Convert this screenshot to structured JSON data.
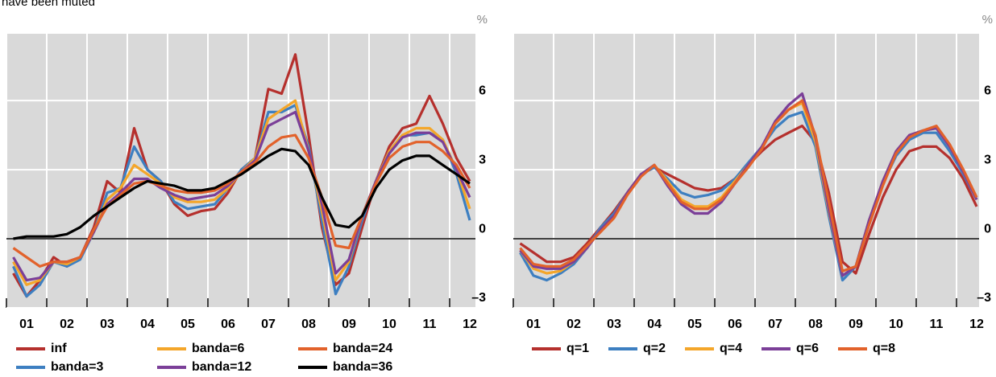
{
  "caption": "have been muted",
  "chart_data": [
    {
      "type": "line",
      "unit_label": "%",
      "x": [
        1.17,
        1.5,
        1.83,
        2.17,
        2.5,
        2.83,
        3.17,
        3.5,
        3.83,
        4.17,
        4.5,
        4.83,
        5.17,
        5.5,
        5.83,
        6.17,
        6.5,
        6.83,
        7.17,
        7.5,
        7.83,
        8.17,
        8.5,
        8.83,
        9.17,
        9.5,
        9.83,
        10.17,
        10.5,
        10.83,
        11.17,
        11.5,
        11.83,
        12.17,
        12.5
      ],
      "xlim": [
        1,
        12.64
      ],
      "xticks": [
        {
          "value": 1,
          "label": "01"
        },
        {
          "value": 2,
          "label": "02"
        },
        {
          "value": 3,
          "label": "03"
        },
        {
          "value": 4,
          "label": "04"
        },
        {
          "value": 5,
          "label": "05"
        },
        {
          "value": 6,
          "label": "06"
        },
        {
          "value": 7,
          "label": "07"
        },
        {
          "value": 8,
          "label": "08"
        },
        {
          "value": 9,
          "label": "09"
        },
        {
          "value": 10,
          "label": "10"
        },
        {
          "value": 11,
          "label": "11"
        },
        {
          "value": 12,
          "label": "12"
        }
      ],
      "ylim": [
        -3,
        8.9
      ],
      "yticks": [
        {
          "value": -3,
          "label": "–3"
        },
        0,
        3,
        6
      ],
      "grid": true,
      "legend": "bottom",
      "series": [
        {
          "name": "inf",
          "color": "#b5302d",
          "values": [
            -1.5,
            -2.5,
            -1.8,
            -0.8,
            -1.2,
            -0.8,
            0.5,
            2.5,
            2.0,
            4.8,
            3.0,
            2.5,
            1.5,
            1.0,
            1.2,
            1.3,
            2.0,
            3.0,
            3.5,
            6.5,
            6.3,
            8.0,
            4.5,
            0.5,
            -2.0,
            -1.5,
            0.5,
            2.5,
            4.0,
            4.8,
            5.0,
            6.2,
            5.0,
            3.5,
            2.5
          ]
        },
        {
          "name": "banda=3",
          "color": "#3d7fc1",
          "values": [
            -1.2,
            -2.5,
            -2.0,
            -1.0,
            -1.2,
            -0.9,
            0.3,
            2.0,
            2.2,
            4.0,
            3.0,
            2.5,
            1.6,
            1.3,
            1.4,
            1.5,
            2.2,
            3.0,
            3.5,
            5.5,
            5.5,
            5.8,
            4.0,
            0.8,
            -2.4,
            -1.2,
            0.8,
            2.5,
            3.8,
            4.5,
            4.5,
            4.6,
            4.3,
            2.8,
            0.8
          ]
        },
        {
          "name": "banda=6",
          "color": "#f4a62a",
          "values": [
            -1.0,
            -2.0,
            -1.8,
            -1.0,
            -1.1,
            -0.8,
            0.3,
            1.7,
            2.2,
            3.2,
            2.8,
            2.4,
            1.8,
            1.6,
            1.6,
            1.7,
            2.2,
            2.9,
            3.5,
            5.2,
            5.6,
            6.0,
            3.8,
            1.2,
            -1.8,
            -1.0,
            1.0,
            2.5,
            3.8,
            4.5,
            4.8,
            4.8,
            4.3,
            3.0,
            1.3
          ]
        },
        {
          "name": "banda=12",
          "color": "#7b3f98",
          "values": [
            -0.8,
            -1.8,
            -1.7,
            -1.0,
            -1.0,
            -0.8,
            0.3,
            1.5,
            2.0,
            2.6,
            2.6,
            2.2,
            1.9,
            1.7,
            1.8,
            1.9,
            2.3,
            2.9,
            3.4,
            4.9,
            5.2,
            5.5,
            3.8,
            1.5,
            -1.5,
            -0.9,
            1.0,
            2.5,
            3.7,
            4.4,
            4.6,
            4.6,
            4.2,
            3.0,
            1.8
          ]
        },
        {
          "name": "banda=24",
          "color": "#e2622b",
          "values": [
            -0.4,
            -0.8,
            -1.2,
            -1.0,
            -1.0,
            -0.8,
            0.4,
            1.4,
            1.9,
            2.4,
            2.5,
            2.3,
            2.1,
            2.0,
            2.0,
            2.1,
            2.4,
            2.9,
            3.3,
            4.0,
            4.4,
            4.5,
            3.5,
            1.8,
            -0.3,
            -0.4,
            1.0,
            2.4,
            3.5,
            4.0,
            4.2,
            4.2,
            3.8,
            3.2,
            2.2
          ]
        },
        {
          "name": "banda=36",
          "color": "#000000",
          "values": [
            0,
            0.1,
            0.1,
            0.1,
            0.2,
            0.5,
            1.0,
            1.4,
            1.8,
            2.2,
            2.5,
            2.4,
            2.3,
            2.1,
            2.1,
            2.2,
            2.5,
            2.8,
            3.2,
            3.6,
            3.9,
            3.8,
            3.2,
            1.8,
            0.6,
            0.5,
            1.0,
            2.2,
            3.0,
            3.4,
            3.6,
            3.6,
            3.2,
            2.8,
            2.4
          ]
        }
      ]
    },
    {
      "type": "line",
      "unit_label": "%",
      "x": [
        1.17,
        1.5,
        1.83,
        2.17,
        2.5,
        2.83,
        3.17,
        3.5,
        3.83,
        4.17,
        4.5,
        4.83,
        5.17,
        5.5,
        5.83,
        6.17,
        6.5,
        6.83,
        7.17,
        7.5,
        7.83,
        8.17,
        8.5,
        8.83,
        9.17,
        9.5,
        9.83,
        10.17,
        10.5,
        10.83,
        11.17,
        11.5,
        11.83,
        12.17,
        12.5
      ],
      "xlim": [
        1,
        12.56
      ],
      "xticks": [
        {
          "value": 1,
          "label": "01"
        },
        {
          "value": 2,
          "label": "02"
        },
        {
          "value": 3,
          "label": "03"
        },
        {
          "value": 4,
          "label": "04"
        },
        {
          "value": 5,
          "label": "05"
        },
        {
          "value": 6,
          "label": "06"
        },
        {
          "value": 7,
          "label": "07"
        },
        {
          "value": 8,
          "label": "08"
        },
        {
          "value": 9,
          "label": "09"
        },
        {
          "value": 10,
          "label": "10"
        },
        {
          "value": 11,
          "label": "11"
        },
        {
          "value": 12,
          "label": "12"
        }
      ],
      "ylim": [
        -3,
        8.9
      ],
      "yticks": [
        {
          "value": -3,
          "label": "–3"
        },
        0,
        3,
        6
      ],
      "grid": true,
      "legend": "bottom",
      "series": [
        {
          "name": "q=1",
          "color": "#b5302d",
          "values": [
            -0.2,
            -0.6,
            -1.0,
            -1.0,
            -0.8,
            -0.2,
            0.5,
            1.2,
            2.0,
            2.8,
            3.1,
            2.8,
            2.5,
            2.2,
            2.1,
            2.2,
            2.6,
            3.2,
            3.8,
            4.3,
            4.6,
            4.9,
            4.2,
            2.0,
            -1.0,
            -1.5,
            0.2,
            1.8,
            3.0,
            3.8,
            4.0,
            4.0,
            3.5,
            2.6,
            1.4
          ]
        },
        {
          "name": "q=2",
          "color": "#3d7fc1",
          "values": [
            -0.6,
            -1.6,
            -1.8,
            -1.5,
            -1.1,
            -0.4,
            0.5,
            1.1,
            2.0,
            2.8,
            3.1,
            2.6,
            2.0,
            1.8,
            1.9,
            2.1,
            2.6,
            3.3,
            4.0,
            4.8,
            5.3,
            5.5,
            4.0,
            1.0,
            -1.8,
            -1.2,
            0.8,
            2.4,
            3.6,
            4.3,
            4.6,
            4.6,
            3.8,
            2.8,
            1.7
          ]
        },
        {
          "name": "q=4",
          "color": "#f4a62a",
          "values": [
            -0.5,
            -1.3,
            -1.5,
            -1.4,
            -1.0,
            -0.4,
            0.4,
            1.0,
            2.0,
            2.8,
            3.2,
            2.5,
            1.7,
            1.4,
            1.4,
            1.8,
            2.5,
            3.2,
            4.0,
            5.0,
            5.6,
            5.9,
            4.2,
            1.2,
            -1.6,
            -1.2,
            0.8,
            2.5,
            3.8,
            4.5,
            4.7,
            4.8,
            4.0,
            2.9,
            1.7
          ]
        },
        {
          "name": "q=6",
          "color": "#7b3f98",
          "values": [
            -0.5,
            -1.2,
            -1.3,
            -1.3,
            -1.0,
            -0.4,
            0.4,
            1.0,
            2.0,
            2.8,
            3.2,
            2.3,
            1.5,
            1.1,
            1.1,
            1.6,
            2.4,
            3.2,
            4.0,
            5.1,
            5.8,
            6.3,
            4.4,
            1.3,
            -1.6,
            -1.2,
            0.8,
            2.5,
            3.8,
            4.5,
            4.7,
            4.8,
            4.0,
            2.9,
            1.7
          ]
        },
        {
          "name": "q=8",
          "color": "#e2622b",
          "values": [
            -0.4,
            -1.1,
            -1.2,
            -1.2,
            -0.9,
            -0.3,
            0.3,
            0.9,
            1.9,
            2.7,
            3.2,
            2.4,
            1.6,
            1.3,
            1.3,
            1.7,
            2.4,
            3.1,
            3.9,
            5.0,
            5.6,
            6.0,
            4.5,
            1.6,
            -1.4,
            -1.2,
            0.6,
            2.3,
            3.7,
            4.4,
            4.7,
            4.9,
            4.1,
            3.0,
            1.8
          ]
        }
      ]
    }
  ]
}
